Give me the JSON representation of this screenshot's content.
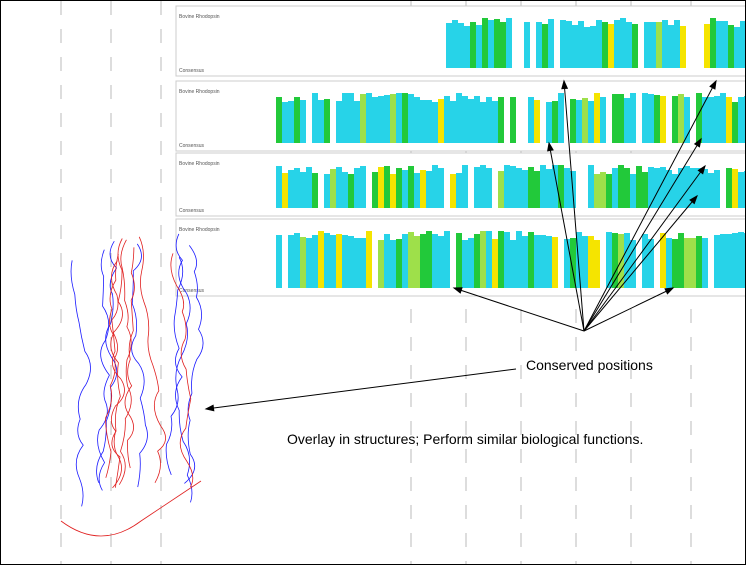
{
  "labels": {
    "conserved": "Conserved positions",
    "overlay": "Overlay in structures; Perform similar biological functions."
  },
  "alignment": {
    "blocks": [
      {
        "first": "Bovine Rhodopsin",
        "last": "Consensus"
      },
      {
        "first": "Bovine Rhodopsin",
        "last": "Consensus"
      },
      {
        "first": "Bovine Rhodopsin",
        "last": "Consensus"
      },
      {
        "first": "Bovine Rhodopsin",
        "last": "Consensus"
      }
    ]
  }
}
